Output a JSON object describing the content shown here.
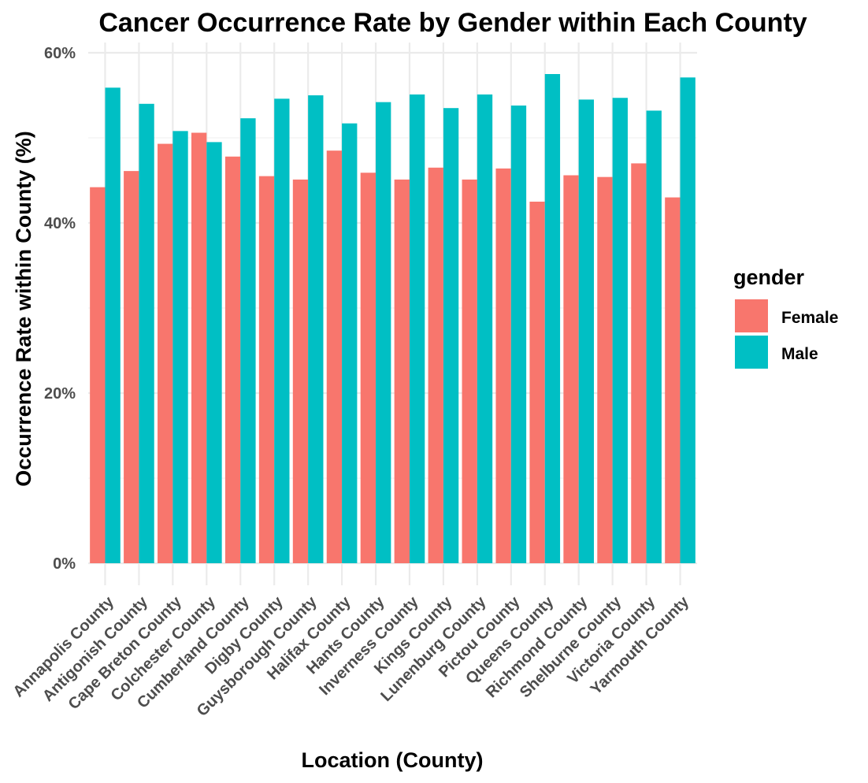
{
  "chart_data": {
    "type": "bar",
    "title": "Cancer Occurrence Rate by Gender within Each County",
    "xlabel": "Location (County)",
    "ylabel": "Occurrence Rate within County (%)",
    "ylim": [
      0,
      60
    ],
    "yticks": [
      0,
      20,
      40,
      60
    ],
    "ytick_labels": [
      "0%",
      "20%",
      "40%",
      "60%"
    ],
    "grid": true,
    "legend": {
      "title": "gender",
      "position": "right"
    },
    "categories": [
      "Annapolis County",
      "Antigonish County",
      "Cape Breton County",
      "Colchester County",
      "Cumberland County",
      "Digby County",
      "Guysborough County",
      "Halifax County",
      "Hants County",
      "Inverness County",
      "Kings County",
      "Lunenburg County",
      "Pictou County",
      "Queens County",
      "Richmond County",
      "Shelburne County",
      "Victoria County",
      "Yarmouth County"
    ],
    "series": [
      {
        "name": "Female",
        "color": "#F8766D",
        "values": [
          44.2,
          46.1,
          49.3,
          50.6,
          47.8,
          45.5,
          45.1,
          48.5,
          45.9,
          45.1,
          46.5,
          45.1,
          46.4,
          42.5,
          45.6,
          45.4,
          47.0,
          43.0
        ]
      },
      {
        "name": "Male",
        "color": "#00BFC4",
        "values": [
          55.9,
          54.0,
          50.8,
          49.5,
          52.3,
          54.6,
          55.0,
          51.7,
          54.2,
          55.1,
          53.5,
          55.1,
          53.8,
          57.5,
          54.5,
          54.7,
          53.2,
          57.1
        ]
      }
    ]
  }
}
